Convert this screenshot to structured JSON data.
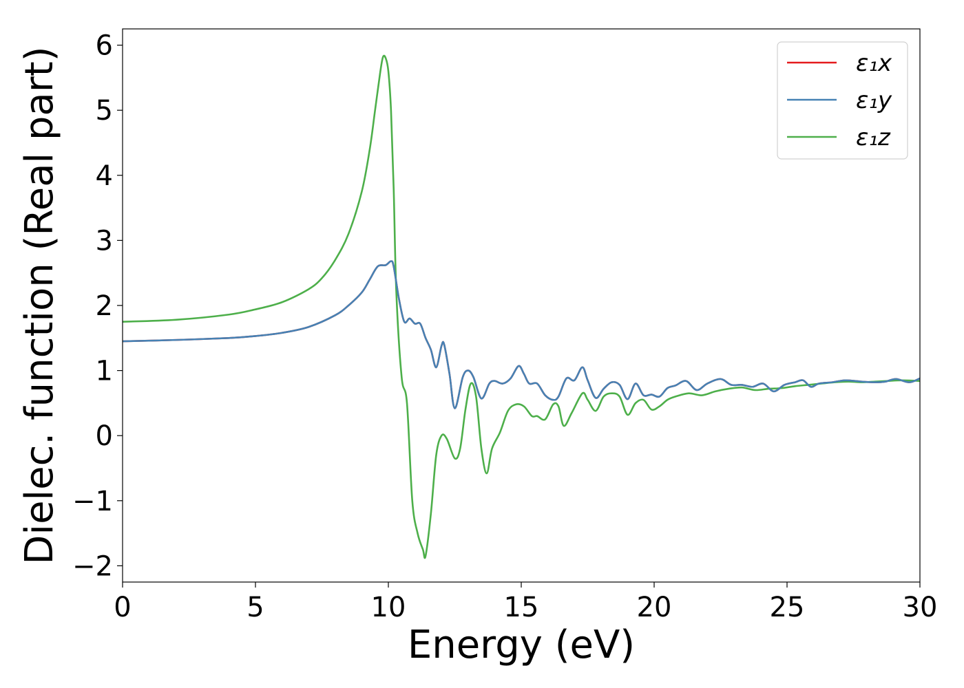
{
  "chart_data": {
    "type": "line",
    "xlabel": "Energy (eV)",
    "ylabel": "Dielec. function (Real part)",
    "xlim": [
      0,
      30
    ],
    "ylim": [
      -2.25,
      6.25
    ],
    "x_ticks": [
      0,
      5,
      10,
      15,
      20,
      25,
      30
    ],
    "y_ticks": [
      -2,
      -1,
      0,
      1,
      2,
      3,
      4,
      5,
      6
    ],
    "x_tick_labels": [
      "0",
      "5",
      "10",
      "15",
      "20",
      "25",
      "30"
    ],
    "y_tick_labels": [
      "−2",
      "−1",
      "0",
      "1",
      "2",
      "3",
      "4",
      "5",
      "6"
    ],
    "grid": false,
    "legend_position": "top-right",
    "series": [
      {
        "name": "ε₁x",
        "color": "#e41a1c",
        "x": [
          0,
          2,
          4,
          5,
          6,
          7,
          8,
          8.5,
          9,
          9.3,
          9.6,
          9.9,
          10.1,
          10.2,
          10.4,
          10.6,
          10.8,
          11,
          11.2,
          11.4,
          11.6,
          11.8,
          12,
          12.1,
          12.3,
          12.5,
          12.8,
          13,
          13.2,
          13.5,
          13.8,
          14,
          14.3,
          14.6,
          14.9,
          15.1,
          15.3,
          15.6,
          15.9,
          16.2,
          16.4,
          16.7,
          17,
          17.3,
          17.5,
          17.8,
          18.1,
          18.4,
          18.7,
          19,
          19.3,
          19.6,
          19.9,
          20.2,
          20.5,
          20.8,
          21.2,
          21.6,
          22,
          22.5,
          22.9,
          23.3,
          23.7,
          24.1,
          24.5,
          24.9,
          25.3,
          25.6,
          25.9,
          26.2,
          26.7,
          27.2,
          27.8,
          28.3,
          28.7,
          29.1,
          29.6,
          30
        ],
        "values": [
          1.45,
          1.47,
          1.5,
          1.53,
          1.58,
          1.67,
          1.85,
          2.0,
          2.2,
          2.4,
          2.6,
          2.62,
          2.68,
          2.6,
          2.1,
          1.75,
          1.8,
          1.72,
          1.72,
          1.5,
          1.32,
          1.05,
          1.38,
          1.4,
          0.95,
          0.42,
          0.9,
          1.0,
          0.9,
          0.57,
          0.8,
          0.84,
          0.8,
          0.88,
          1.07,
          0.95,
          0.8,
          0.8,
          0.62,
          0.55,
          0.6,
          0.88,
          0.85,
          1.05,
          0.85,
          0.58,
          0.72,
          0.82,
          0.78,
          0.56,
          0.8,
          0.62,
          0.63,
          0.6,
          0.73,
          0.77,
          0.84,
          0.7,
          0.8,
          0.87,
          0.78,
          0.78,
          0.75,
          0.8,
          0.68,
          0.78,
          0.82,
          0.85,
          0.75,
          0.8,
          0.82,
          0.85,
          0.83,
          0.82,
          0.83,
          0.87,
          0.82,
          0.88
        ]
      },
      {
        "name": "ε₁y",
        "color": "#4682b4",
        "x": [
          0,
          2,
          4,
          5,
          6,
          7,
          8,
          8.5,
          9,
          9.3,
          9.6,
          9.9,
          10.1,
          10.2,
          10.4,
          10.6,
          10.8,
          11,
          11.2,
          11.4,
          11.6,
          11.8,
          12,
          12.1,
          12.3,
          12.5,
          12.8,
          13,
          13.2,
          13.5,
          13.8,
          14,
          14.3,
          14.6,
          14.9,
          15.1,
          15.3,
          15.6,
          15.9,
          16.2,
          16.4,
          16.7,
          17,
          17.3,
          17.5,
          17.8,
          18.1,
          18.4,
          18.7,
          19,
          19.3,
          19.6,
          19.9,
          20.2,
          20.5,
          20.8,
          21.2,
          21.6,
          22,
          22.5,
          22.9,
          23.3,
          23.7,
          24.1,
          24.5,
          24.9,
          25.3,
          25.6,
          25.9,
          26.2,
          26.7,
          27.2,
          27.8,
          28.3,
          28.7,
          29.1,
          29.6,
          30
        ],
        "values": [
          1.45,
          1.47,
          1.5,
          1.53,
          1.58,
          1.67,
          1.85,
          2.0,
          2.2,
          2.4,
          2.6,
          2.62,
          2.68,
          2.6,
          2.1,
          1.75,
          1.8,
          1.72,
          1.72,
          1.5,
          1.32,
          1.05,
          1.38,
          1.4,
          0.95,
          0.42,
          0.9,
          1.0,
          0.9,
          0.57,
          0.8,
          0.84,
          0.8,
          0.88,
          1.07,
          0.95,
          0.8,
          0.8,
          0.62,
          0.55,
          0.6,
          0.88,
          0.85,
          1.05,
          0.85,
          0.58,
          0.72,
          0.82,
          0.78,
          0.56,
          0.8,
          0.62,
          0.63,
          0.6,
          0.73,
          0.77,
          0.84,
          0.7,
          0.8,
          0.87,
          0.78,
          0.78,
          0.75,
          0.8,
          0.68,
          0.78,
          0.82,
          0.85,
          0.75,
          0.8,
          0.82,
          0.85,
          0.83,
          0.82,
          0.83,
          0.87,
          0.82,
          0.88
        ]
      },
      {
        "name": "ε₁z",
        "color": "#4daf4a",
        "x": [
          0,
          2,
          4,
          5,
          6,
          7,
          7.5,
          8,
          8.5,
          9,
          9.3,
          9.5,
          9.7,
          9.8,
          9.9,
          10,
          10.1,
          10.2,
          10.3,
          10.5,
          10.7,
          10.9,
          11.1,
          11.3,
          11.4,
          11.6,
          11.8,
          12,
          12.2,
          12.5,
          12.7,
          12.9,
          13.1,
          13.3,
          13.5,
          13.7,
          13.9,
          14.2,
          14.5,
          14.8,
          15.1,
          15.4,
          15.6,
          15.9,
          16.2,
          16.4,
          16.6,
          16.9,
          17.3,
          17.5,
          17.8,
          18.1,
          18.4,
          18.7,
          19,
          19.3,
          19.6,
          19.9,
          20.2,
          20.5,
          20.8,
          21.3,
          21.8,
          22.3,
          22.8,
          23.3,
          23.8,
          24.3,
          24.8,
          25.3,
          25.8,
          26.3,
          26.8,
          27.3,
          27.8,
          28.3,
          28.8,
          29.3,
          30
        ],
        "values": [
          1.75,
          1.78,
          1.86,
          1.94,
          2.05,
          2.25,
          2.42,
          2.7,
          3.1,
          3.75,
          4.4,
          5.0,
          5.6,
          5.82,
          5.8,
          5.6,
          5.0,
          3.8,
          2.2,
          0.9,
          0.5,
          -1.0,
          -1.5,
          -1.75,
          -1.85,
          -1.2,
          -0.3,
          0.0,
          -0.05,
          -0.35,
          -0.2,
          0.4,
          0.8,
          0.6,
          -0.2,
          -0.58,
          -0.2,
          0.05,
          0.38,
          0.48,
          0.45,
          0.3,
          0.3,
          0.25,
          0.48,
          0.45,
          0.15,
          0.35,
          0.65,
          0.55,
          0.38,
          0.6,
          0.65,
          0.6,
          0.32,
          0.5,
          0.55,
          0.4,
          0.45,
          0.55,
          0.6,
          0.65,
          0.62,
          0.68,
          0.72,
          0.74,
          0.7,
          0.72,
          0.73,
          0.76,
          0.78,
          0.8,
          0.82,
          0.83,
          0.82,
          0.83,
          0.84,
          0.85,
          0.84
        ]
      }
    ]
  }
}
